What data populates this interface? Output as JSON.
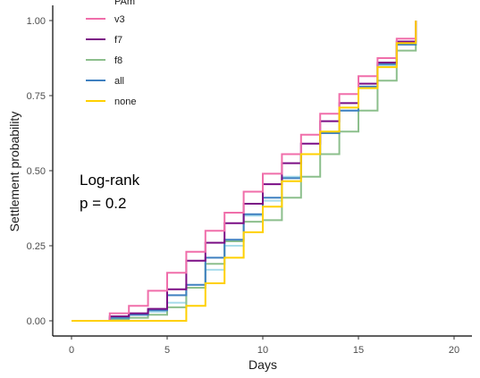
{
  "chart_data": {
    "type": "line",
    "subtype": "kaplan-meier-step",
    "xlabel": "Days",
    "ylabel": "Settlement probability",
    "xlim": [
      0,
      20
    ],
    "ylim": [
      0,
      1
    ],
    "x_ticks": [
      "0",
      "5",
      "10",
      "15",
      "20"
    ],
    "y_ticks": [
      "0.00",
      "0.25",
      "0.50",
      "0.75",
      "1.00"
    ],
    "grid": false,
    "legend_title": "PAm",
    "legend_position": "top-left",
    "annotation": [
      "Log-rank",
      "p = 0.2"
    ],
    "series": [
      {
        "name": "v3",
        "color": "#F06EAA",
        "x": [
          0,
          2,
          3,
          4,
          5,
          6,
          7,
          8,
          9,
          10,
          11,
          12,
          13,
          14,
          15,
          16,
          17,
          18
        ],
        "y": [
          0,
          0.025,
          0.05,
          0.1,
          0.16,
          0.23,
          0.3,
          0.36,
          0.43,
          0.49,
          0.555,
          0.62,
          0.69,
          0.755,
          0.815,
          0.875,
          0.94,
          1.0
        ]
      },
      {
        "name": "f7",
        "color": "#7B0F85",
        "x": [
          0,
          2,
          3,
          4,
          5,
          6,
          7,
          8,
          9,
          10,
          11,
          12,
          13,
          14,
          15,
          16,
          17,
          18
        ],
        "y": [
          0,
          0.015,
          0.025,
          0.04,
          0.105,
          0.2,
          0.26,
          0.325,
          0.39,
          0.455,
          0.525,
          0.59,
          0.665,
          0.725,
          0.79,
          0.86,
          0.93,
          1.0
        ]
      },
      {
        "name": "f8",
        "color": "#8CBF8C",
        "x": [
          0,
          2,
          3,
          4,
          5,
          6,
          7,
          8,
          9,
          10,
          11,
          12,
          13,
          14,
          15,
          16,
          17,
          18
        ],
        "y": [
          0,
          0.005,
          0.01,
          0.02,
          0.045,
          0.11,
          0.19,
          0.265,
          0.33,
          0.335,
          0.41,
          0.48,
          0.555,
          0.63,
          0.7,
          0.8,
          0.9,
          1.0
        ]
      },
      {
        "name": "all",
        "color": "#3F80C0",
        "x": [
          0,
          2,
          3,
          4,
          5,
          6,
          7,
          8,
          9,
          10,
          11,
          12,
          13,
          14,
          15,
          16,
          17,
          18
        ],
        "y": [
          0,
          0.01,
          0.02,
          0.035,
          0.085,
          0.12,
          0.21,
          0.27,
          0.355,
          0.41,
          0.475,
          0.555,
          0.625,
          0.7,
          0.78,
          0.855,
          0.92,
          1.0
        ]
      },
      {
        "name": "none",
        "color": "#FFD000",
        "x": [
          0,
          6,
          7,
          8,
          9,
          10,
          11,
          12,
          13,
          14,
          15,
          16,
          17,
          18
        ],
        "y": [
          0,
          0.05,
          0.125,
          0.21,
          0.295,
          0.38,
          0.465,
          0.555,
          0.63,
          0.71,
          0.775,
          0.845,
          0.925,
          1.0
        ]
      },
      {
        "name": "",
        "color": "#A8DCEB",
        "x": [
          0,
          2,
          3,
          4,
          5,
          6,
          7,
          8,
          9,
          10,
          11,
          12,
          13,
          14,
          15,
          16,
          17,
          18
        ],
        "y": [
          0,
          0.01,
          0.02,
          0.03,
          0.06,
          0.11,
          0.17,
          0.25,
          0.35,
          0.4,
          0.48,
          0.555,
          0.625,
          0.7,
          0.775,
          0.85,
          0.92,
          1.0
        ]
      }
    ]
  }
}
